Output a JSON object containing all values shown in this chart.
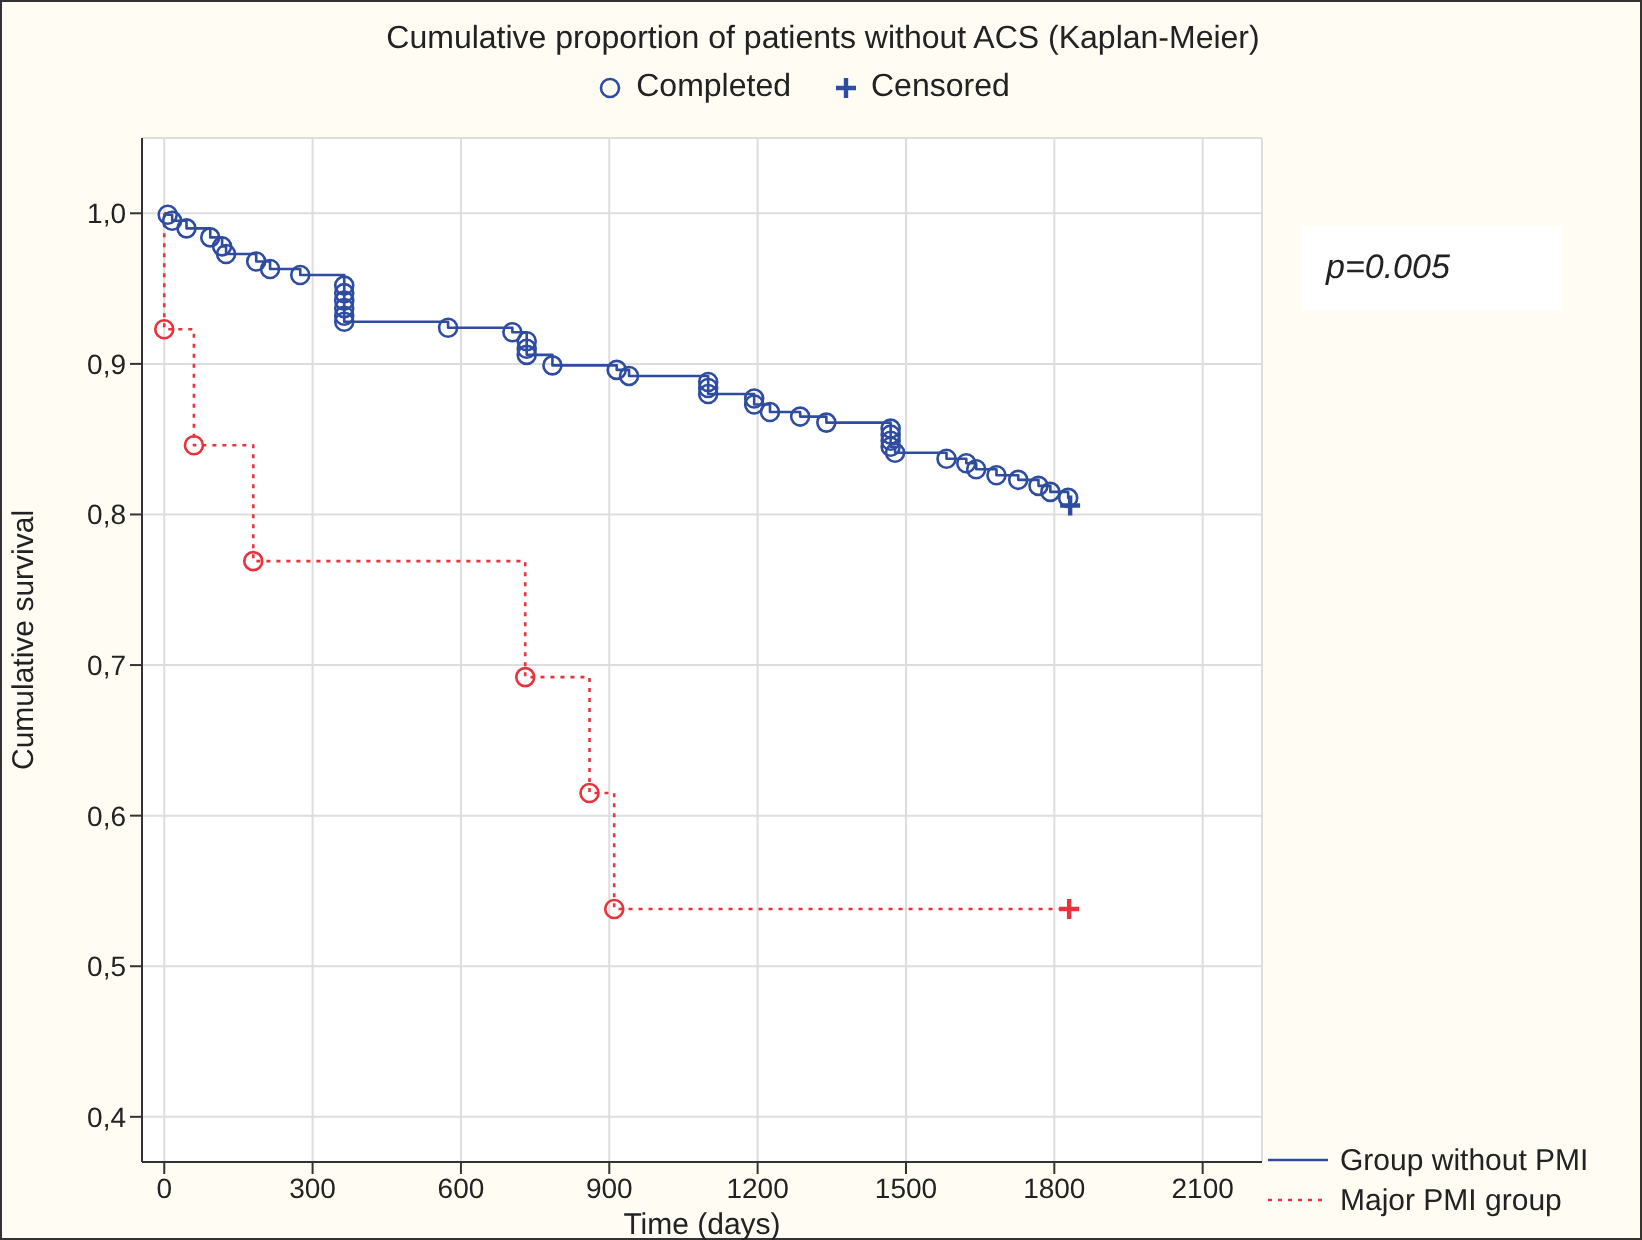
{
  "chart_data": {
    "type": "step",
    "title": "Cumulative proportion of patients without ACS (Kaplan-Meier)",
    "xlabel": "Time (days)",
    "ylabel": "Cumulative survival",
    "annotations": [
      "p=0.005"
    ],
    "xlim": [
      -45,
      2220
    ],
    "xticks": [
      0,
      300,
      600,
      900,
      1200,
      1500,
      1800,
      2100
    ],
    "ylim": [
      0.37,
      1.05
    ],
    "yticks": [
      {
        "value": 0.4,
        "label": "0,4"
      },
      {
        "value": 0.5,
        "label": "0,5"
      },
      {
        "value": 0.6,
        "label": "0,6"
      },
      {
        "value": 0.7,
        "label": "0,7"
      },
      {
        "value": 0.8,
        "label": "0,8"
      },
      {
        "value": 0.9,
        "label": "0,9"
      },
      {
        "value": 1.0,
        "label": "1,0"
      }
    ],
    "grid": true,
    "legend": "right",
    "series": [
      {
        "name": "Group without PMI",
        "color": "#2e4da0",
        "line_style": "solid",
        "marker": "none",
        "x": [
          0,
          7,
          16,
          45,
          93,
          117,
          125,
          186,
          214,
          275,
          364,
          364,
          364,
          364,
          364,
          364,
          574,
          704,
          733,
          733,
          733,
          785,
          915,
          940,
          1100,
          1100,
          1100,
          1193,
          1193,
          1225,
          1286,
          1339,
          1469,
          1469,
          1469,
          1469,
          1478,
          1582,
          1622,
          1642,
          1683,
          1727,
          1768,
          1792,
          1828,
          1832
        ],
        "values": [
          1.0,
          0.999,
          0.995,
          0.99,
          0.984,
          0.978,
          0.973,
          0.968,
          0.963,
          0.959,
          0.952,
          0.947,
          0.942,
          0.937,
          0.932,
          0.928,
          0.924,
          0.921,
          0.915,
          0.91,
          0.906,
          0.899,
          0.896,
          0.892,
          0.888,
          0.884,
          0.88,
          0.877,
          0.873,
          0.868,
          0.865,
          0.861,
          0.857,
          0.853,
          0.849,
          0.845,
          0.841,
          0.837,
          0.834,
          0.83,
          0.826,
          0.823,
          0.819,
          0.815,
          0.811,
          0.811
        ]
      },
      {
        "name": "Major PMI group",
        "color": "#e8323c",
        "line_style": "dotted",
        "marker": "none",
        "x": [
          0,
          0,
          60,
          180,
          730,
          860,
          910,
          1830
        ],
        "values": [
          1.0,
          0.923,
          0.846,
          0.769,
          0.692,
          0.615,
          0.538,
          0.538
        ]
      },
      {
        "name": "Completed",
        "type": "scatter",
        "color": "#2e4da0",
        "marker": "circle",
        "x": [
          7,
          16,
          45,
          93,
          117,
          125,
          186,
          214,
          275,
          364,
          364,
          364,
          364,
          364,
          364,
          574,
          704,
          733,
          733,
          733,
          785,
          915,
          940,
          1100,
          1100,
          1100,
          1193,
          1193,
          1225,
          1286,
          1339,
          1469,
          1469,
          1469,
          1469,
          1478,
          1582,
          1622,
          1642,
          1683,
          1727,
          1768,
          1792,
          1828,
          0,
          60,
          180,
          730,
          860,
          910
        ],
        "values": [
          0.999,
          0.995,
          0.99,
          0.984,
          0.978,
          0.973,
          0.968,
          0.963,
          0.959,
          0.952,
          0.947,
          0.942,
          0.937,
          0.932,
          0.928,
          0.924,
          0.921,
          0.915,
          0.91,
          0.906,
          0.899,
          0.896,
          0.892,
          0.888,
          0.884,
          0.88,
          0.877,
          0.873,
          0.868,
          0.865,
          0.861,
          0.857,
          0.853,
          0.849,
          0.845,
          0.841,
          0.837,
          0.834,
          0.83,
          0.826,
          0.823,
          0.819,
          0.815,
          0.811,
          0.923,
          0.846,
          0.769,
          0.692,
          0.615,
          0.538
        ],
        "colors": [
          "#2e4da0",
          "#2e4da0",
          "#2e4da0",
          "#2e4da0",
          "#2e4da0",
          "#2e4da0",
          "#2e4da0",
          "#2e4da0",
          "#2e4da0",
          "#2e4da0",
          "#2e4da0",
          "#2e4da0",
          "#2e4da0",
          "#2e4da0",
          "#2e4da0",
          "#2e4da0",
          "#2e4da0",
          "#2e4da0",
          "#2e4da0",
          "#2e4da0",
          "#2e4da0",
          "#2e4da0",
          "#2e4da0",
          "#2e4da0",
          "#2e4da0",
          "#2e4da0",
          "#2e4da0",
          "#2e4da0",
          "#2e4da0",
          "#2e4da0",
          "#2e4da0",
          "#2e4da0",
          "#2e4da0",
          "#2e4da0",
          "#2e4da0",
          "#2e4da0",
          "#2e4da0",
          "#2e4da0",
          "#2e4da0",
          "#2e4da0",
          "#2e4da0",
          "#2e4da0",
          "#2e4da0",
          "#2e4da0",
          "#e8323c",
          "#e8323c",
          "#e8323c",
          "#e8323c",
          "#e8323c",
          "#e8323c"
        ]
      },
      {
        "name": "Censored",
        "type": "scatter",
        "color": "#2e4da0",
        "marker": "cross",
        "x": [
          1832,
          1830
        ],
        "values": [
          0.806,
          0.538
        ],
        "colors": [
          "#2e4da0",
          "#e8323c"
        ]
      }
    ]
  }
}
